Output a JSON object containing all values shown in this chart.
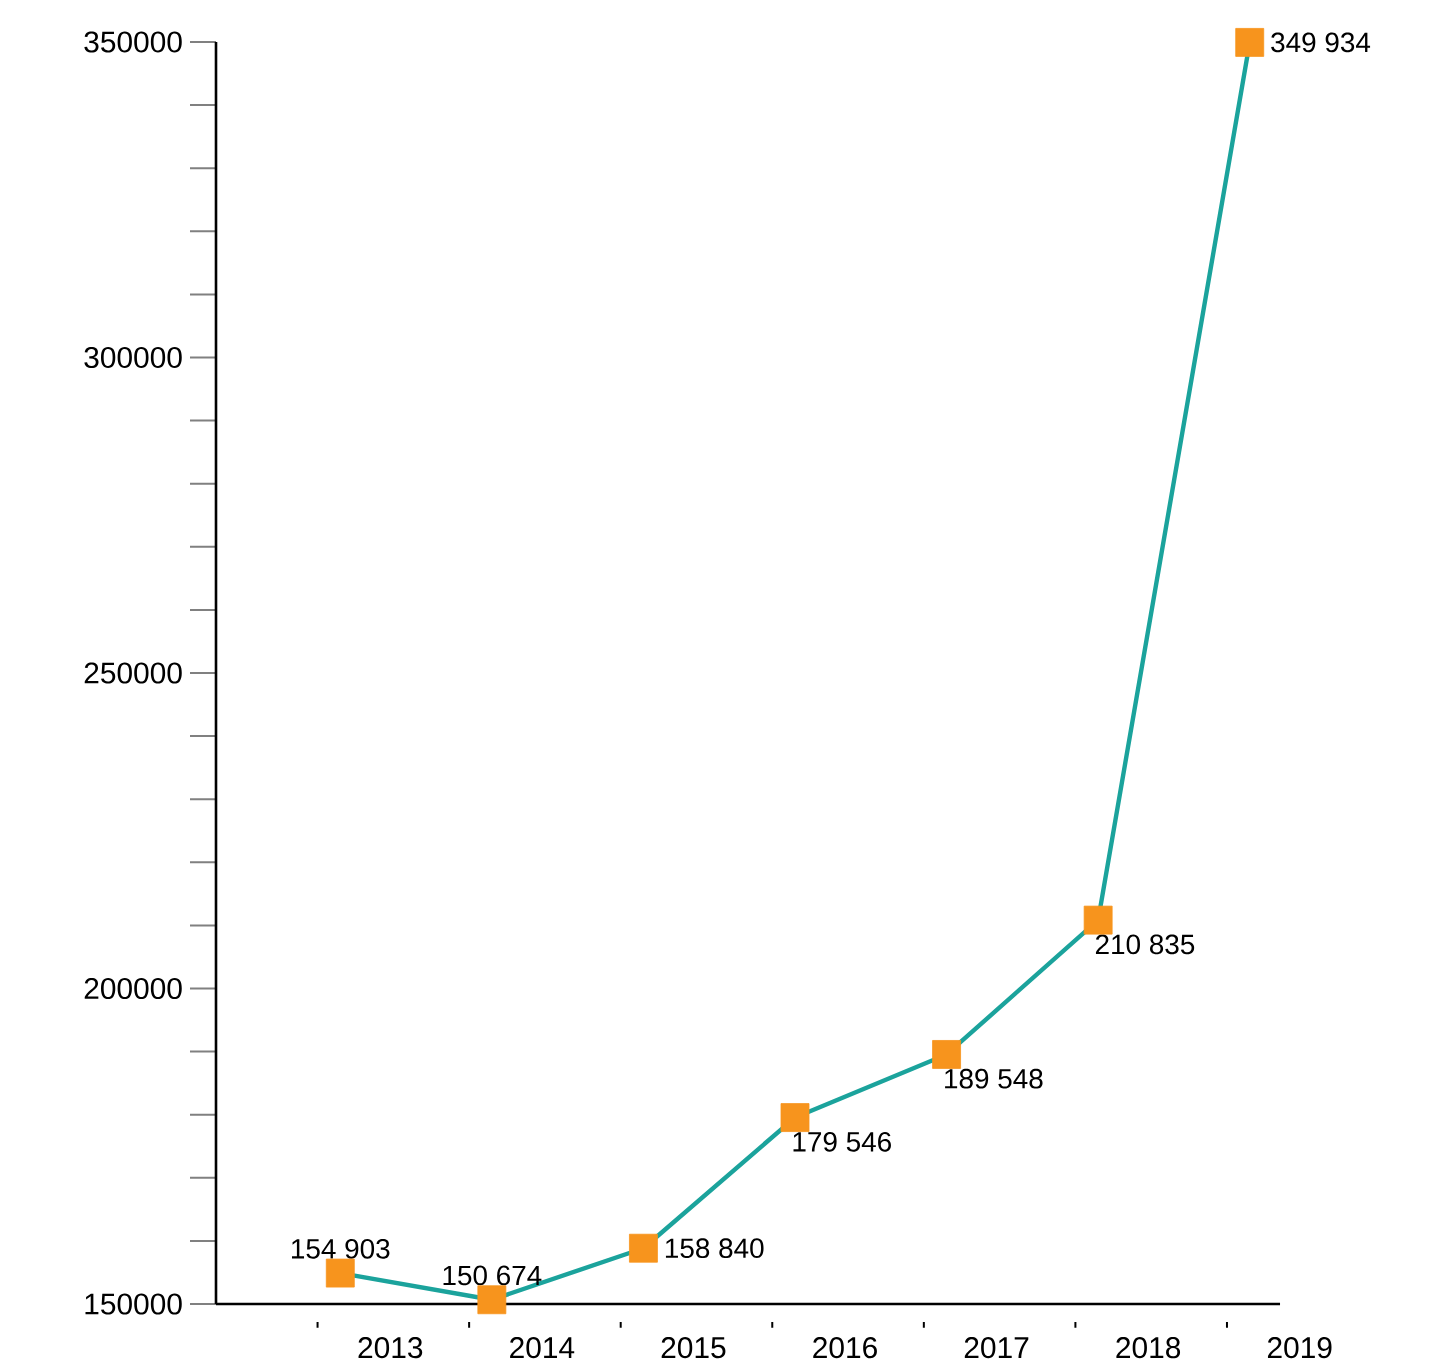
{
  "chart_data": {
    "type": "line",
    "categories": [
      "2013",
      "2014",
      "2015",
      "2016",
      "2017",
      "2018",
      "2019"
    ],
    "series": [
      {
        "color": "#1ba39c",
        "colors": [
          "#f7941d",
          "#f7941d",
          "#f7941d",
          "#f7941d",
          "#f7941d",
          "#f7941d",
          "#f7941d"
        ],
        "values": [
          154903,
          150674,
          158840,
          179546,
          189548,
          210835,
          349934
        ],
        "value_labels": [
          "154 903",
          "150 674",
          "158 840",
          "179 546",
          "189 548",
          "210 835",
          "349 934"
        ]
      }
    ],
    "ylim": [
      150000,
      350000
    ],
    "yticks": [
      150000,
      {
        "value": 160000,
        "label": null
      },
      {
        "value": 170000,
        "label": null
      },
      {
        "value": 180000,
        "label": null
      },
      {
        "value": 190000,
        "label": null
      },
      200000,
      {
        "value": 210000,
        "label": null
      },
      {
        "value": 220000,
        "label": null
      },
      {
        "value": 230000,
        "label": null
      },
      {
        "value": 240000,
        "label": null
      },
      250000,
      {
        "value": 260000,
        "label": null
      },
      {
        "value": 270000,
        "label": null
      },
      {
        "value": 280000,
        "label": null
      },
      {
        "value": 290000,
        "label": null
      },
      300000,
      {
        "value": 310000,
        "label": null
      },
      {
        "value": 320000,
        "label": null
      },
      {
        "value": 330000,
        "label": null
      },
      {
        "value": 340000,
        "label": null
      },
      350000
    ],
    "marker": "square",
    "line_style": "solid",
    "grid": false,
    "legend": false
  }
}
